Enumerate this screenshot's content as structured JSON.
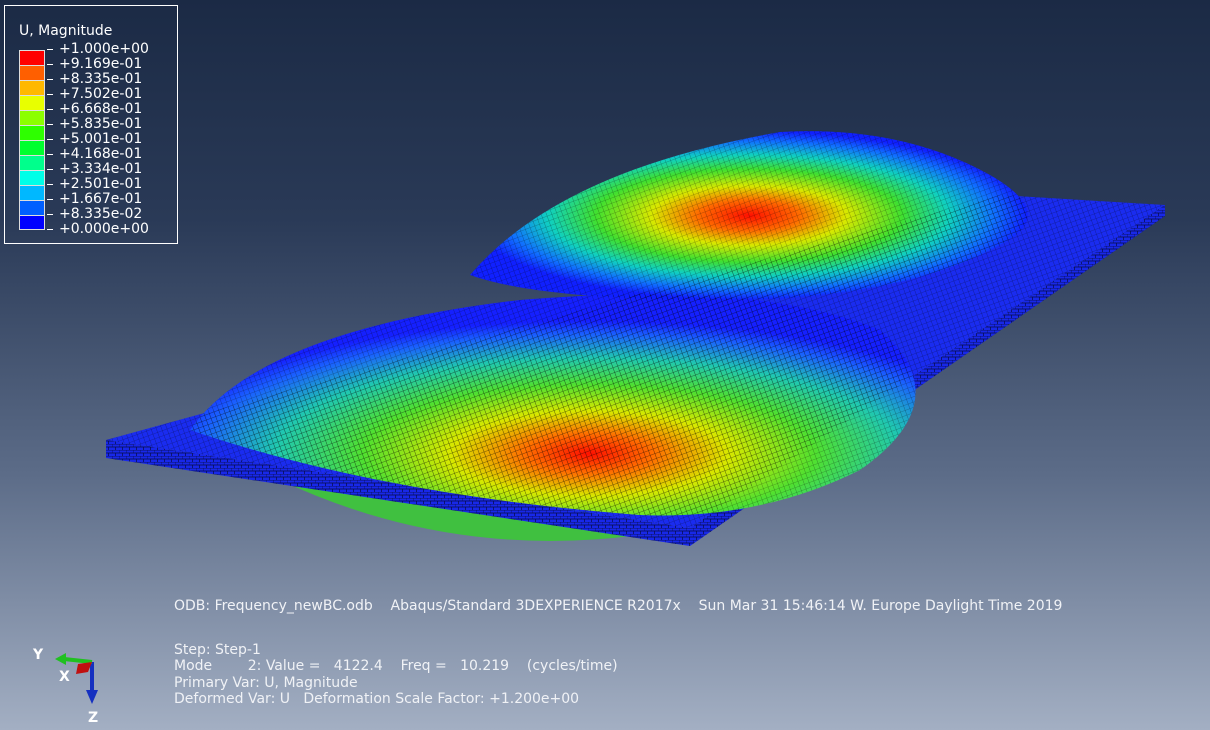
{
  "legend": {
    "title": "U, Magnitude",
    "entries": [
      {
        "label": "+1.000e+00",
        "color": "#ff0000"
      },
      {
        "label": "+9.169e-01",
        "color": "#ff5f00"
      },
      {
        "label": "+8.335e-01",
        "color": "#ffb800"
      },
      {
        "label": "+7.502e-01",
        "color": "#e8ff00"
      },
      {
        "label": "+6.668e-01",
        "color": "#8cff00"
      },
      {
        "label": "+5.835e-01",
        "color": "#2eff00"
      },
      {
        "label": "+5.001e-01",
        "color": "#00ff2e"
      },
      {
        "label": "+4.168e-01",
        "color": "#00ff8c"
      },
      {
        "label": "+3.334e-01",
        "color": "#00ffe8"
      },
      {
        "label": "+2.501e-01",
        "color": "#00b8ff"
      },
      {
        "label": "+1.667e-01",
        "color": "#005fff"
      },
      {
        "label": "+8.335e-02",
        "color": "#0000ff"
      },
      {
        "label": "+0.000e+00",
        "color": ""
      }
    ]
  },
  "info": {
    "odb_line": "ODB: Frequency_newBC.odb    Abaqus/Standard 3DEXPERIENCE R2017x    Sun Mar 31 15:46:14 W. Europe Daylight Time 2019",
    "step": "Step: Step-1",
    "mode": "Mode        2: Value =   4122.4    Freq =   10.219    (cycles/time)",
    "primary": "Primary Var: U, Magnitude",
    "deformed": "Deformed Var: U   Deformation Scale Factor: +1.200e+00"
  },
  "triad": {
    "x": "X",
    "y": "Y",
    "z": "Z"
  }
}
